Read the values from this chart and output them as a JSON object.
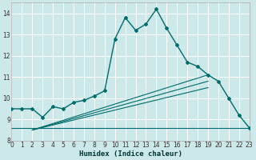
{
  "xlabel": "Humidex (Indice chaleur)",
  "bg_color": "#cce8e8",
  "grid_color": "#ffffff",
  "line_color": "#006b6b",
  "xmin": 0,
  "xmax": 23,
  "ymin": 8,
  "ymax": 14.5,
  "yticks": [
    8,
    9,
    10,
    11,
    12,
    13,
    14
  ],
  "xticks": [
    0,
    1,
    2,
    3,
    4,
    5,
    6,
    7,
    8,
    9,
    10,
    11,
    12,
    13,
    14,
    15,
    16,
    17,
    18,
    19,
    20,
    21,
    22,
    23
  ],
  "series1_x": [
    0,
    1,
    2,
    3,
    4,
    5,
    6,
    7,
    8,
    9,
    10,
    11,
    12,
    13,
    14,
    15,
    16,
    17,
    18,
    19,
    20,
    21,
    22,
    23
  ],
  "series1_y": [
    9.5,
    9.5,
    9.5,
    9.1,
    9.6,
    9.5,
    9.8,
    9.9,
    10.1,
    10.35,
    12.8,
    13.8,
    13.2,
    13.5,
    14.2,
    13.3,
    12.5,
    11.7,
    11.5,
    11.1,
    10.8,
    10.0,
    9.2,
    8.6
  ],
  "series2_x": [
    0,
    1,
    2,
    3,
    4,
    5,
    6,
    7,
    8,
    9,
    10,
    11,
    12,
    13,
    14,
    15,
    16,
    17,
    18,
    19,
    20,
    21,
    22,
    23
  ],
  "series2_y": [
    8.6,
    8.6,
    8.6,
    8.6,
    8.6,
    8.6,
    8.6,
    8.6,
    8.6,
    8.6,
    8.6,
    8.6,
    8.6,
    8.6,
    8.6,
    8.6,
    8.6,
    8.6,
    8.6,
    8.6,
    8.6,
    8.6,
    8.6,
    8.6
  ],
  "series3_x": [
    2,
    19
  ],
  "series3_y": [
    8.5,
    11.1
  ],
  "series4_x": [
    2,
    19
  ],
  "series4_y": [
    8.5,
    10.8
  ],
  "series5_x": [
    2,
    19
  ],
  "series5_y": [
    8.5,
    10.5
  ]
}
